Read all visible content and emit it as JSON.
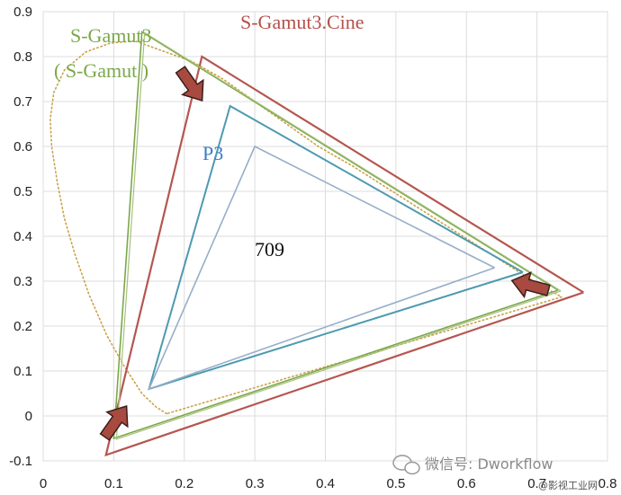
{
  "chart_data": {
    "type": "scatter",
    "title": "",
    "xlabel": "",
    "ylabel": "",
    "xlim": [
      0,
      0.8
    ],
    "ylim": [
      -0.1,
      0.9
    ],
    "x_ticks": [
      "0",
      "0.1",
      "0.2",
      "0.3",
      "0.4",
      "0.5",
      "0.6",
      "0.7",
      "0.8"
    ],
    "y_ticks": [
      "-0.1",
      "0",
      "0.1",
      "0.2",
      "0.3",
      "0.4",
      "0.5",
      "0.6",
      "0.7",
      "0.8",
      "0.9"
    ],
    "grid": true,
    "colors": {
      "s_gamut3_cine": "#b5564f",
      "s_gamut3": "#7aa84a",
      "s_gamut": "#a8c078",
      "p3": "#4d9ab0",
      "rec709": "#97aec9",
      "locus": "#c9a24a",
      "arrow_fill": "#a84a40"
    },
    "series": [
      {
        "name": "S-Gamut3.Cine",
        "x": [
          0.766,
          0.225,
          0.089,
          0.766
        ],
        "y": [
          0.275,
          0.8,
          -0.087,
          0.275
        ]
      },
      {
        "name": "S-Gamut3",
        "x": [
          0.73,
          0.14,
          0.1,
          0.73
        ],
        "y": [
          0.28,
          0.855,
          -0.05,
          0.28
        ]
      },
      {
        "name": "S-Gamut",
        "x": [
          0.73,
          0.14,
          0.1,
          0.73
        ],
        "y": [
          0.28,
          0.855,
          -0.05,
          0.28
        ]
      },
      {
        "name": "P3",
        "x": [
          0.68,
          0.265,
          0.15,
          0.68
        ],
        "y": [
          0.32,
          0.69,
          0.06,
          0.32
        ]
      },
      {
        "name": "709",
        "x": [
          0.64,
          0.3,
          0.15,
          0.64
        ],
        "y": [
          0.33,
          0.6,
          0.06,
          0.33
        ]
      }
    ],
    "spectral_locus": {
      "x": [
        0.175,
        0.17,
        0.16,
        0.14,
        0.115,
        0.09,
        0.065,
        0.045,
        0.03,
        0.02,
        0.012,
        0.01,
        0.015,
        0.03,
        0.06,
        0.095,
        0.13,
        0.165,
        0.21,
        0.255,
        0.3,
        0.345,
        0.39,
        0.44,
        0.495,
        0.55,
        0.605,
        0.655,
        0.7,
        0.735,
        0.735,
        0.175
      ],
      "y": [
        0.005,
        0.01,
        0.02,
        0.05,
        0.11,
        0.18,
        0.27,
        0.36,
        0.44,
        0.52,
        0.6,
        0.66,
        0.72,
        0.77,
        0.81,
        0.83,
        0.835,
        0.815,
        0.79,
        0.75,
        0.7,
        0.65,
        0.6,
        0.555,
        0.5,
        0.445,
        0.39,
        0.34,
        0.295,
        0.265,
        0.265,
        0.005
      ]
    },
    "annotations": [
      "S-Gamut3.Cine",
      "S-Gamut3",
      "( S-Gamut )",
      "P3",
      "709"
    ]
  },
  "watermark": {
    "text": "微信号: Dworkflow",
    "corner": "@影视工业网"
  }
}
